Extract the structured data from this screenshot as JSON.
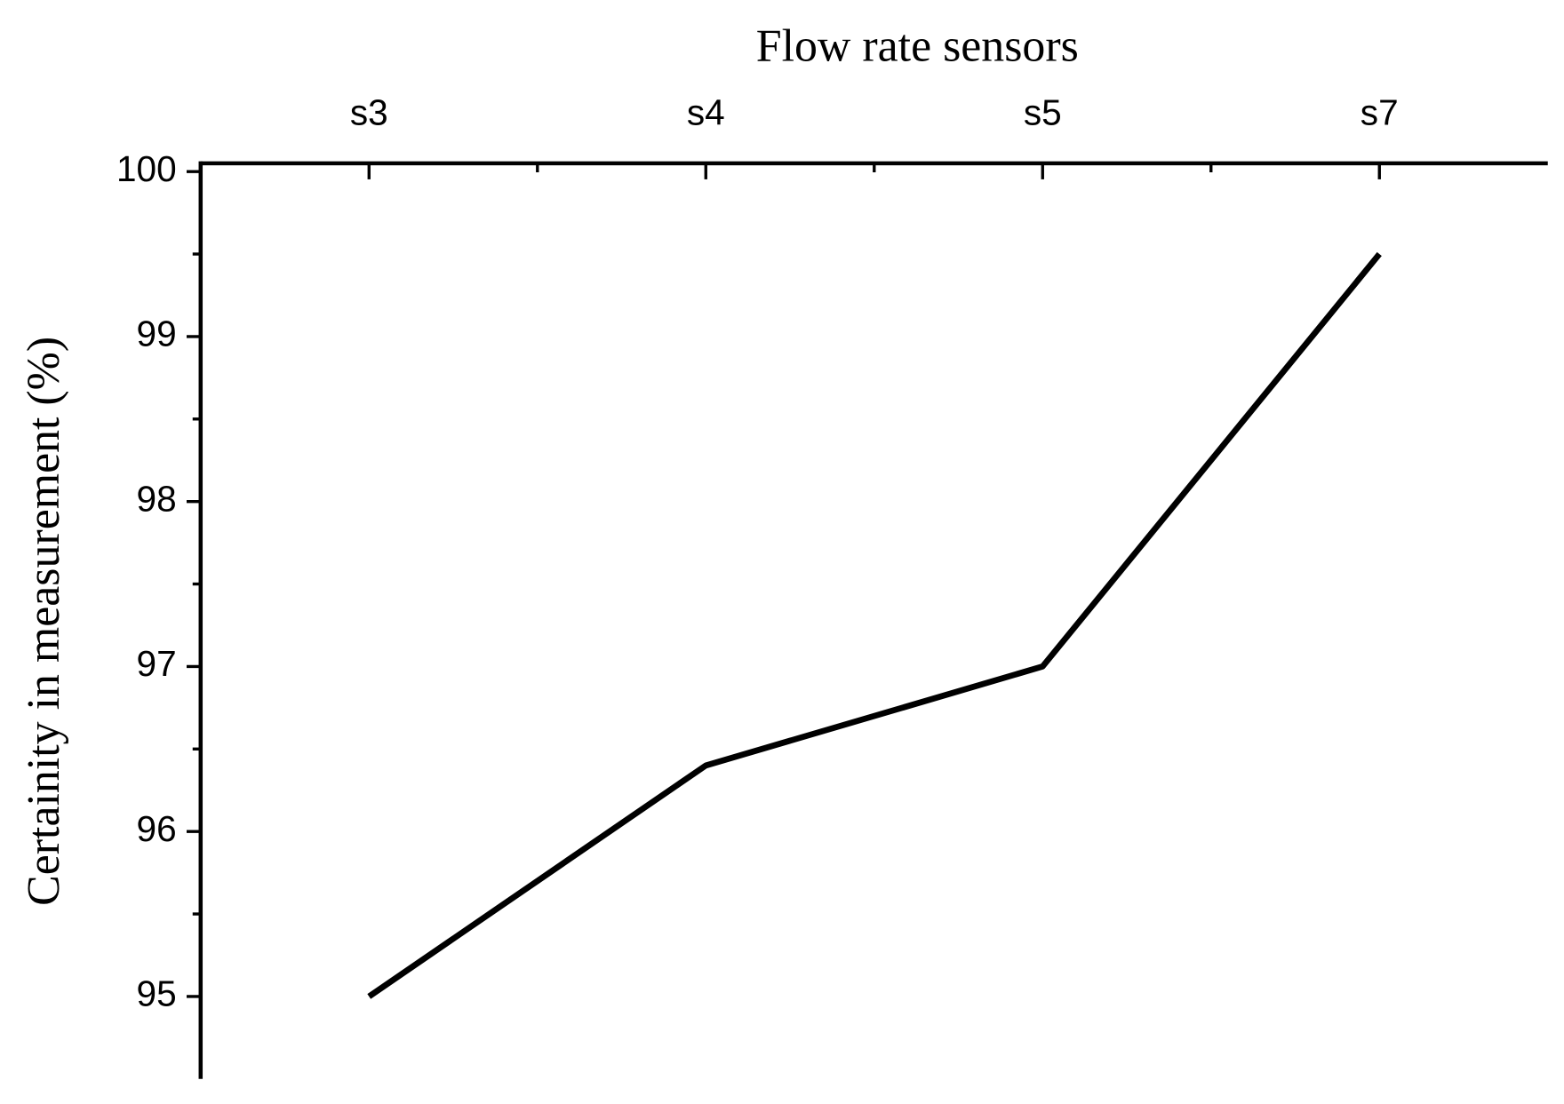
{
  "chart_data": {
    "type": "line",
    "title": "Flow rate sensors",
    "y_label": "Certainity in measurement (%)",
    "categories": [
      "s3",
      "s4",
      "s5",
      "s7"
    ],
    "series": [
      {
        "name": "Certainity",
        "color": "#000000",
        "values": [
          95,
          96.4,
          97,
          99.5
        ]
      }
    ],
    "ylim": [
      94.5,
      100.05
    ],
    "yticks": [
      95,
      96,
      97,
      98,
      99,
      100
    ],
    "grid": false
  }
}
